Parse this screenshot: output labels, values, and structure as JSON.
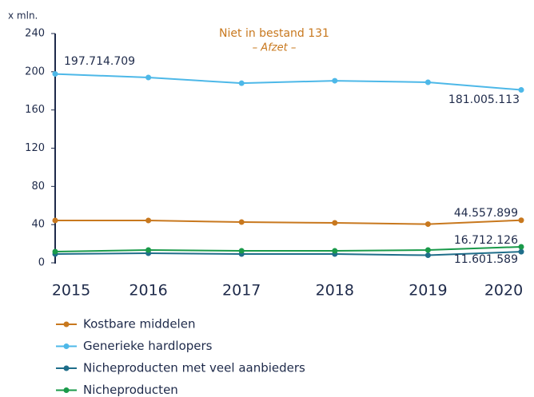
{
  "chart_data": {
    "type": "line",
    "title": "Niet in bestand 131",
    "subtitle": "– Afzet –",
    "ylabel": "x mln.",
    "categories": [
      "2015",
      "2016",
      "2017",
      "2018",
      "2019",
      "2020"
    ],
    "ylim": [
      0,
      240
    ],
    "yticks": [
      0,
      40,
      80,
      120,
      160,
      200,
      240
    ],
    "series": [
      {
        "name": "Kostbare middelen",
        "color": "#c8781e",
        "values": [
          44.3,
          44.3,
          42.6,
          41.8,
          40.5,
          44.557899
        ],
        "value_labels": [
          null,
          null,
          null,
          null,
          null,
          "44.557.899"
        ]
      },
      {
        "name": "Generieke hardlopers",
        "color": "#4db8e8",
        "values": [
          197.714709,
          194,
          188,
          190.6,
          189,
          181.005113
        ],
        "value_labels": [
          "197.714.709",
          null,
          null,
          null,
          null,
          "181.005.113"
        ]
      },
      {
        "name": "Nicheproducten met veel aanbieders",
        "color": "#1f6e8a",
        "values": [
          9.2,
          10,
          9.2,
          9.2,
          7.9,
          11.601589
        ],
        "value_labels": [
          null,
          null,
          null,
          null,
          null,
          "11.601.589"
        ]
      },
      {
        "name": "Nicheproducten",
        "color": "#1a9a4a",
        "values": [
          11.7,
          13.4,
          12.5,
          12.5,
          13.4,
          16.712126
        ],
        "value_labels": [
          null,
          null,
          null,
          null,
          null,
          "16.712.126"
        ]
      }
    ]
  }
}
